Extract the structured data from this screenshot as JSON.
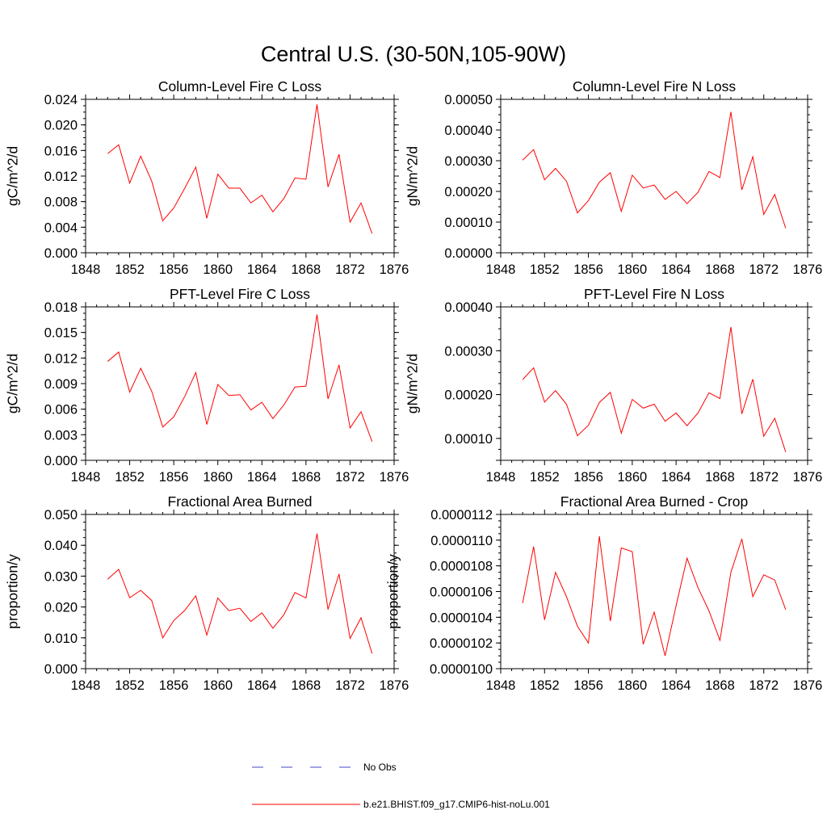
{
  "figure": {
    "title": "Central U.S. (30-50N,105-90W)",
    "colors": {
      "model": "#ff0000",
      "obs": "#6b6bd6",
      "axis": "#000000"
    },
    "legend": [
      {
        "label": "No Obs",
        "style": "dashed",
        "color": "#6b6bd6"
      },
      {
        "label": "b.e21.BHIST.f09_g17.CMIP6-hist-noLu.001",
        "style": "solid",
        "color": "#ff0000"
      }
    ]
  },
  "chart_data": [
    {
      "type": "line",
      "title": "Column-Level Fire C Loss",
      "ylabel": "gC/m^2/d",
      "xlim": [
        1848,
        1876
      ],
      "xticks": [
        "1848",
        "1852",
        "1856",
        "1860",
        "1864",
        "1868",
        "1872",
        "1876"
      ],
      "ylim": [
        0,
        0.024
      ],
      "yticks": [
        "0.000",
        "0.004",
        "0.008",
        "0.012",
        "0.016",
        "0.020",
        "0.024"
      ],
      "series": [
        {
          "name": "b.e21.BHIST.f09_g17.CMIP6-hist-noLu.001",
          "x": [
            1850,
            1851,
            1852,
            1853,
            1854,
            1855,
            1856,
            1857,
            1858,
            1859,
            1860,
            1861,
            1862,
            1863,
            1864,
            1865,
            1866,
            1867,
            1868,
            1869,
            1870,
            1871,
            1872,
            1873,
            1874
          ],
          "y": [
            0.0155,
            0.0169,
            0.0109,
            0.0151,
            0.0112,
            0.005,
            0.007,
            0.0101,
            0.0134,
            0.0054,
            0.0123,
            0.0101,
            0.0101,
            0.0078,
            0.009,
            0.0064,
            0.0085,
            0.0117,
            0.0115,
            0.0232,
            0.0103,
            0.0154,
            0.0048,
            0.0078,
            0.003
          ]
        }
      ]
    },
    {
      "type": "line",
      "title": "Column-Level Fire N Loss",
      "ylabel": "gN/m^2/d",
      "xlim": [
        1848,
        1876
      ],
      "xticks": [
        "1848",
        "1852",
        "1856",
        "1860",
        "1864",
        "1868",
        "1872",
        "1876"
      ],
      "ylim": [
        0,
        0.0005
      ],
      "yticks": [
        "0.00000",
        "0.00010",
        "0.00020",
        "0.00030",
        "0.00040",
        "0.00050"
      ],
      "series": [
        {
          "name": "b.e21.BHIST.f09_g17.CMIP6-hist-noLu.001",
          "x": [
            1850,
            1851,
            1852,
            1853,
            1854,
            1855,
            1856,
            1857,
            1858,
            1859,
            1860,
            1861,
            1862,
            1863,
            1864,
            1865,
            1866,
            1867,
            1868,
            1869,
            1870,
            1871,
            1872,
            1873,
            1874
          ],
          "y": [
            0.000302,
            0.000336,
            0.000238,
            0.000275,
            0.000233,
            0.00013,
            0.00017,
            0.00023,
            0.000261,
            0.000135,
            0.000253,
            0.000211,
            0.000221,
            0.000174,
            0.0002,
            0.00016,
            0.000197,
            0.000265,
            0.000245,
            0.000459,
            0.000205,
            0.000313,
            0.000125,
            0.00019,
            8e-05
          ]
        }
      ]
    },
    {
      "type": "line",
      "title": "PFT-Level Fire C Loss",
      "ylabel": "gC/m^2/d",
      "xlim": [
        1848,
        1876
      ],
      "xticks": [
        "1848",
        "1852",
        "1856",
        "1860",
        "1864",
        "1868",
        "1872",
        "1876"
      ],
      "ylim": [
        0,
        0.018
      ],
      "yticks": [
        "0.000",
        "0.003",
        "0.006",
        "0.009",
        "0.012",
        "0.015",
        "0.018"
      ],
      "series": [
        {
          "name": "b.e21.BHIST.f09_g17.CMIP6-hist-noLu.001",
          "x": [
            1850,
            1851,
            1852,
            1853,
            1854,
            1855,
            1856,
            1857,
            1858,
            1859,
            1860,
            1861,
            1862,
            1863,
            1864,
            1865,
            1866,
            1867,
            1868,
            1869,
            1870,
            1871,
            1872,
            1873,
            1874
          ],
          "y": [
            0.0116,
            0.0127,
            0.008,
            0.0108,
            0.0081,
            0.0039,
            0.0051,
            0.0075,
            0.0103,
            0.0042,
            0.0089,
            0.0076,
            0.0077,
            0.0059,
            0.0068,
            0.0049,
            0.0065,
            0.0086,
            0.0087,
            0.0171,
            0.0072,
            0.0112,
            0.0038,
            0.0057,
            0.0022
          ]
        }
      ]
    },
    {
      "type": "line",
      "title": "PFT-Level Fire N Loss",
      "ylabel": "gN/m^2/d",
      "xlim": [
        1848,
        1876
      ],
      "xticks": [
        "1848",
        "1852",
        "1856",
        "1860",
        "1864",
        "1868",
        "1872",
        "1876"
      ],
      "ylim": [
        5e-05,
        0.0004
      ],
      "yticks": [
        "",
        "0.00010",
        "0.00020",
        "0.00030",
        "0.00040"
      ],
      "ytick_values": [
        5e-05,
        0.0001,
        0.0002,
        0.0003,
        0.0004
      ],
      "series": [
        {
          "name": "b.e21.BHIST.f09_g17.CMIP6-hist-noLu.001",
          "x": [
            1850,
            1851,
            1852,
            1853,
            1854,
            1855,
            1856,
            1857,
            1858,
            1859,
            1860,
            1861,
            1862,
            1863,
            1864,
            1865,
            1866,
            1867,
            1868,
            1869,
            1870,
            1871,
            1872,
            1873,
            1874
          ],
          "y": [
            0.000234,
            0.000261,
            0.000183,
            0.000209,
            0.000178,
            0.000106,
            0.00013,
            0.000182,
            0.000205,
            0.000112,
            0.000189,
            0.000169,
            0.000178,
            0.000139,
            0.000158,
            0.000129,
            0.000158,
            0.000204,
            0.000191,
            0.000354,
            0.000156,
            0.000235,
            0.000105,
            0.000146,
            6.9e-05
          ]
        }
      ]
    },
    {
      "type": "line",
      "title": "Fractional Area Burned",
      "ylabel": "proportion/y",
      "xlim": [
        1848,
        1876
      ],
      "xticks": [
        "1848",
        "1852",
        "1856",
        "1860",
        "1864",
        "1868",
        "1872",
        "1876"
      ],
      "ylim": [
        0,
        0.05
      ],
      "yticks": [
        "0.000",
        "0.010",
        "0.020",
        "0.030",
        "0.040",
        "0.050"
      ],
      "series": [
        {
          "name": "b.e21.BHIST.f09_g17.CMIP6-hist-noLu.001",
          "x": [
            1850,
            1851,
            1852,
            1853,
            1854,
            1855,
            1856,
            1857,
            1858,
            1859,
            1860,
            1861,
            1862,
            1863,
            1864,
            1865,
            1866,
            1867,
            1868,
            1869,
            1870,
            1871,
            1872,
            1873,
            1874
          ],
          "y": [
            0.029,
            0.0322,
            0.023,
            0.0254,
            0.0221,
            0.01,
            0.0156,
            0.0189,
            0.0236,
            0.0109,
            0.0229,
            0.0188,
            0.0196,
            0.0153,
            0.0181,
            0.0131,
            0.0175,
            0.0247,
            0.0229,
            0.0438,
            0.0192,
            0.0307,
            0.0098,
            0.0165,
            0.0049
          ]
        }
      ]
    },
    {
      "type": "line",
      "title": "Fractional Area Burned - Crop",
      "ylabel": "proportion/y",
      "xlim": [
        1848,
        1876
      ],
      "xticks": [
        "1848",
        "1852",
        "1856",
        "1860",
        "1864",
        "1868",
        "1872",
        "1876"
      ],
      "ylim": [
        1e-05,
        1.12e-05
      ],
      "yticks": [
        "0.0000100",
        "0.0000102",
        "0.0000104",
        "0.0000106",
        "0.0000108",
        "0.0000110",
        "0.0000112"
      ],
      "series": [
        {
          "name": "b.e21.BHIST.f09_g17.CMIP6-hist-noLu.001",
          "x": [
            1850,
            1851,
            1852,
            1853,
            1854,
            1855,
            1856,
            1857,
            1858,
            1859,
            1860,
            1861,
            1862,
            1863,
            1864,
            1865,
            1866,
            1867,
            1868,
            1869,
            1870,
            1871,
            1872,
            1873,
            1874
          ],
          "y": [
            1.051e-05,
            1.095e-05,
            1.038e-05,
            1.075e-05,
            1.056e-05,
            1.033e-05,
            1.02e-05,
            1.103e-05,
            1.037e-05,
            1.094e-05,
            1.091e-05,
            1.019e-05,
            1.044e-05,
            1.01e-05,
            1.049e-05,
            1.086e-05,
            1.063e-05,
            1.045e-05,
            1.022e-05,
            1.075e-05,
            1.101e-05,
            1.056e-05,
            1.073e-05,
            1.069e-05,
            1.046e-05
          ]
        }
      ]
    }
  ]
}
